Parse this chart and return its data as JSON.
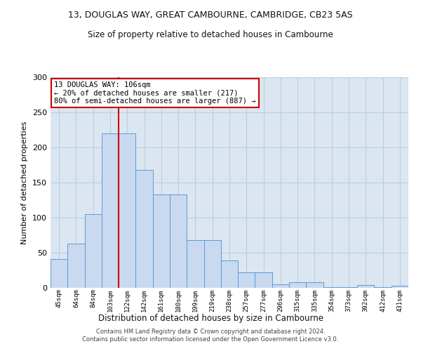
{
  "title_line1": "13, DOUGLAS WAY, GREAT CAMBOURNE, CAMBRIDGE, CB23 5AS",
  "title_line2": "Size of property relative to detached houses in Cambourne",
  "xlabel": "Distribution of detached houses by size in Cambourne",
  "ylabel": "Number of detached properties",
  "categories": [
    "45sqm",
    "64sqm",
    "84sqm",
    "103sqm",
    "122sqm",
    "142sqm",
    "161sqm",
    "180sqm",
    "199sqm",
    "219sqm",
    "238sqm",
    "257sqm",
    "277sqm",
    "296sqm",
    "315sqm",
    "335sqm",
    "354sqm",
    "373sqm",
    "392sqm",
    "412sqm",
    "431sqm"
  ],
  "values": [
    41,
    63,
    105,
    220,
    220,
    168,
    133,
    133,
    68,
    68,
    39,
    22,
    22,
    5,
    8,
    8,
    1,
    1,
    4,
    1,
    3
  ],
  "bar_color": "#c9d9f0",
  "bar_edge_color": "#5b9bd5",
  "grid_color": "#b8cfe4",
  "background_color": "#dce6f1",
  "vline_x_index": 3,
  "vline_color": "#cc0000",
  "annotation_text": "13 DOUGLAS WAY: 106sqm\n← 20% of detached houses are smaller (217)\n80% of semi-detached houses are larger (887) →",
  "annotation_box_color": "#ffffff",
  "annotation_box_edge": "#cc0000",
  "footer": "Contains HM Land Registry data © Crown copyright and database right 2024.\nContains public sector information licensed under the Open Government Licence v3.0.",
  "ylim": [
    0,
    300
  ],
  "yticks": [
    0,
    50,
    100,
    150,
    200,
    250,
    300
  ]
}
